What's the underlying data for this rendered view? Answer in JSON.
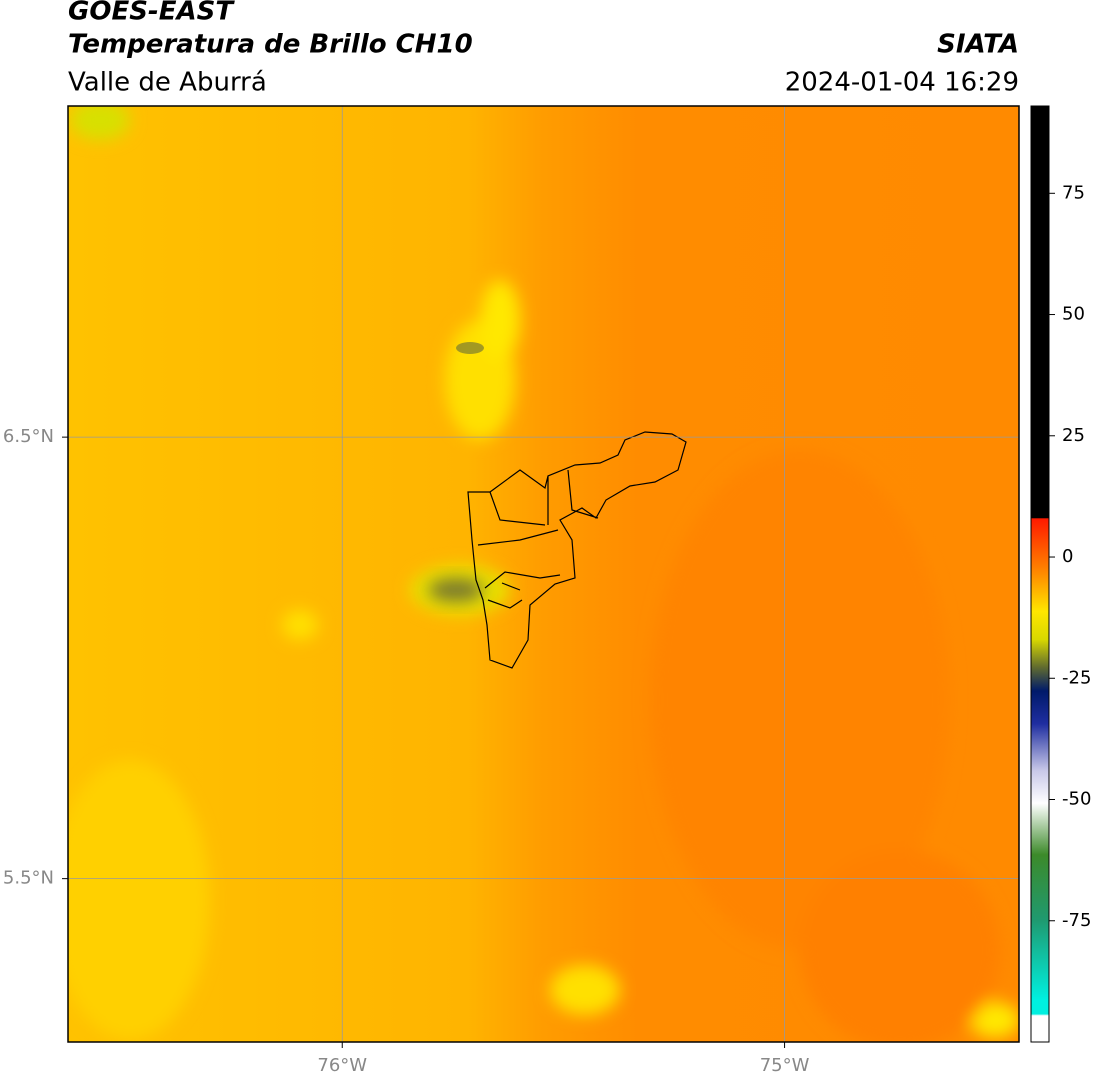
{
  "header": {
    "title": "GOES-EAST",
    "subtitle": "Temperatura de Brillo CH10",
    "region": "Valle de Aburrá",
    "source": "SIATA",
    "timestamp": "2024-01-04 16:29"
  },
  "map": {
    "xlim": [
      -76.62,
      -74.47
    ],
    "ylim": [
      5.13,
      7.25
    ],
    "xticks": [
      {
        "value": -76,
        "label": "76°W"
      },
      {
        "value": -75,
        "label": "75°W"
      }
    ],
    "yticks": [
      {
        "value": 6.5,
        "label": "6.5°N"
      },
      {
        "value": 5.5,
        "label": "5.5°N"
      }
    ],
    "grid": true
  },
  "colorbar": {
    "lim": [
      -100,
      93
    ],
    "ticks": [
      75,
      50,
      25,
      0,
      -25,
      -50,
      -75
    ]
  }
}
